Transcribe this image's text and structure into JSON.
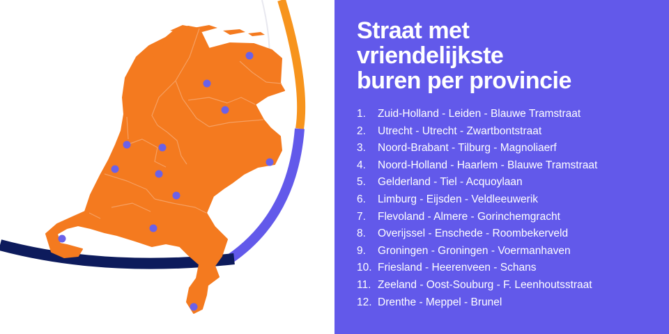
{
  "colors": {
    "panel": "#6259ea",
    "province_fill": "#f47a1f",
    "border": "#f6a062",
    "marker": "#6b61e8",
    "curve_orange": "#f7941d",
    "curve_purple": "#6259ea",
    "curve_navy": "#0d1b5c"
  },
  "title_lines": [
    "Straat met",
    "vriendelijkste",
    "buren per provincie"
  ],
  "ranking": [
    {
      "rank": "1.",
      "text": "Zuid-Holland - Leiden - Blauwe Tramstraat"
    },
    {
      "rank": "2.",
      "text": "Utrecht - Utrecht - Zwartbontstraat"
    },
    {
      "rank": "3.",
      "text": "Noord-Brabant - Tilburg - Magnoliaerf"
    },
    {
      "rank": "4.",
      "text": "Noord-Holland - Haarlem - Blauwe Tramstraat"
    },
    {
      "rank": "5.",
      "text": "Gelderland - Tiel - Acquoylaan"
    },
    {
      "rank": "6.",
      "text": "Limburg - Eijsden - Veldleeuwerik"
    },
    {
      "rank": "7.",
      "text": "Flevoland - Almere - Gorinchemgracht"
    },
    {
      "rank": "8.",
      "text": "Overijssel - Enschede - Roombekerveld"
    },
    {
      "rank": "9.",
      "text": "Groningen - Groningen - Voermanhaven"
    },
    {
      "rank": "10.",
      "text": "Friesland - Heerenveen - Schans"
    },
    {
      "rank": "11.",
      "text": "Zeeland - Oost-Souburg - F. Leenhoutsstraat"
    },
    {
      "rank": "12.",
      "text": "Drenthe - Meppel - Brunel"
    }
  ],
  "markers": [
    "Groningen",
    "Heerenveen",
    "Meppel",
    "Haarlem",
    "Almere",
    "Leiden",
    "Utrecht",
    "Enschede",
    "Tiel",
    "Tilburg",
    "Oost-Souburg",
    "Eijsden"
  ]
}
